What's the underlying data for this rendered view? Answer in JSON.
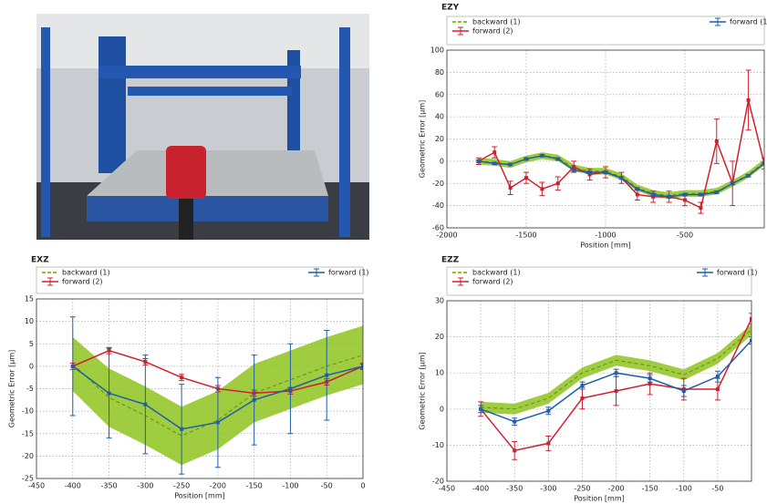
{
  "chart_data": [
    {
      "type": "line",
      "title": "EZY",
      "xlabel": "Position [mm]",
      "ylabel": "Geometric Error [µm]",
      "x": [
        -1800,
        -1700,
        -1600,
        -1500,
        -1400,
        -1300,
        -1200,
        -1100,
        -1000,
        -900,
        -800,
        -700,
        -600,
        -500,
        -400,
        -300,
        -200,
        -100,
        0
      ],
      "xlim": [
        -2000,
        0
      ],
      "xticks": [
        -2000,
        -1500,
        -1000,
        -500
      ],
      "ylim": [
        -60,
        100
      ],
      "yticks": [
        -60,
        -40,
        -20,
        0,
        20,
        40,
        60,
        80,
        100
      ],
      "grid": true,
      "series": [
        {
          "name": "backward (1)",
          "color": "#8fc31f",
          "style": "band",
          "values": [
            0,
            -1,
            -3,
            2,
            5,
            3,
            -6,
            -9,
            -9,
            -14,
            -24,
            -29,
            -31,
            -29,
            -29,
            -27,
            -20,
            -12,
            -1
          ],
          "band": [
            3,
            3,
            3,
            3,
            3,
            3,
            3,
            3,
            3,
            3,
            3,
            3,
            3,
            3,
            3,
            3,
            3,
            3,
            3
          ]
        },
        {
          "name": "forward (2)",
          "color": "#d0202e",
          "style": "errorbar",
          "values": [
            0,
            8,
            -24,
            -15,
            -25,
            -20,
            -5,
            -12,
            -10,
            -15,
            -30,
            -32,
            -32,
            -35,
            -42,
            18,
            -20,
            55,
            -2
          ],
          "errors": [
            3,
            5,
            6,
            5,
            6,
            6,
            5,
            5,
            5,
            5,
            5,
            5,
            5,
            5,
            5,
            20,
            20,
            27,
            5
          ]
        },
        {
          "name": "forward (1)",
          "color": "#1f5fa8",
          "style": "errorbar",
          "values": [
            0,
            -2,
            -3,
            2,
            5,
            2,
            -8,
            -10,
            -10,
            -15,
            -25,
            -30,
            -32,
            -30,
            -30,
            -28,
            -20,
            -13,
            -2
          ],
          "errors": [
            1,
            1,
            1,
            1,
            1,
            1,
            1,
            1,
            1,
            1,
            1,
            1,
            1,
            1,
            1,
            1,
            1,
            1,
            1
          ]
        }
      ]
    },
    {
      "type": "line",
      "title": "EXZ",
      "xlabel": "Position [mm]",
      "ylabel": "Geometric Error [µm]",
      "x": [
        -400,
        -350,
        -300,
        -250,
        -200,
        -150,
        -100,
        -50,
        0
      ],
      "xlim": [
        -450,
        0
      ],
      "xticks": [
        -450,
        -400,
        -350,
        -300,
        -250,
        -200,
        -150,
        -100,
        -50,
        0
      ],
      "ylim": [
        -25,
        15
      ],
      "yticks": [
        -25,
        -20,
        -15,
        -10,
        -5,
        0,
        5,
        10,
        15
      ],
      "grid": true,
      "series": [
        {
          "name": "backward (1)",
          "color": "#8fc31f",
          "style": "band",
          "values": [
            0.5,
            -7,
            -11,
            -15.5,
            -12,
            -6,
            -3,
            0,
            2.5
          ],
          "band": [
            6,
            6.5,
            6.5,
            6.5,
            6.5,
            6.5,
            6.5,
            6.5,
            6.5
          ]
        },
        {
          "name": "forward (2)",
          "color": "#d0202e",
          "style": "errorbar",
          "values": [
            0,
            3.5,
            1,
            -2.5,
            -5,
            -6,
            -5.5,
            -3.5,
            0
          ],
          "errors": [
            0.7,
            0.7,
            0.7,
            0.7,
            0.7,
            0.7,
            0.7,
            0.7,
            0.7
          ]
        },
        {
          "name": "forward (1)",
          "color": "#1f5fa8",
          "style": "errorbar",
          "values": [
            0,
            -6,
            -8.5,
            -14,
            -12.5,
            -7.5,
            -5,
            -2,
            0
          ],
          "errors": [
            11,
            10,
            11,
            10,
            10,
            10,
            10,
            10,
            0.5
          ]
        }
      ]
    },
    {
      "type": "line",
      "title": "EZZ",
      "xlabel": "Position [mm]",
      "ylabel": "Geometric Error [µm]",
      "x": [
        -400,
        -350,
        -300,
        -250,
        -200,
        -150,
        -100,
        -50,
        0
      ],
      "xlim": [
        -450,
        0
      ],
      "xticks": [
        -450,
        -400,
        -350,
        -300,
        -250,
        -200,
        -150,
        -100,
        -50
      ],
      "ylim": [
        -20,
        30
      ],
      "yticks": [
        -20,
        -10,
        0,
        10,
        20,
        30
      ],
      "grid": true,
      "series": [
        {
          "name": "backward (1)",
          "color": "#8fc31f",
          "style": "band",
          "values": [
            0.5,
            0,
            3,
            10,
            13.5,
            12,
            9.5,
            14,
            22
          ],
          "band": [
            1.5,
            1.5,
            1.5,
            1.5,
            1.5,
            1.5,
            1.5,
            1.5,
            1.5
          ]
        },
        {
          "name": "forward (2)",
          "color": "#d0202e",
          "style": "errorbar",
          "values": [
            0,
            -11.5,
            -9.5,
            3,
            5,
            7,
            5.5,
            5.5,
            25
          ],
          "errors": [
            2,
            2.5,
            2,
            3,
            4,
            3,
            3,
            3,
            1.5
          ]
        },
        {
          "name": "forward (1)",
          "color": "#1f5fa8",
          "style": "errorbar",
          "values": [
            0,
            -3.5,
            -0.5,
            6.5,
            10,
            8.5,
            5,
            9,
            19
          ],
          "errors": [
            1,
            1,
            1,
            1,
            1,
            1,
            1.5,
            1.5,
            1
          ]
        }
      ]
    }
  ]
}
